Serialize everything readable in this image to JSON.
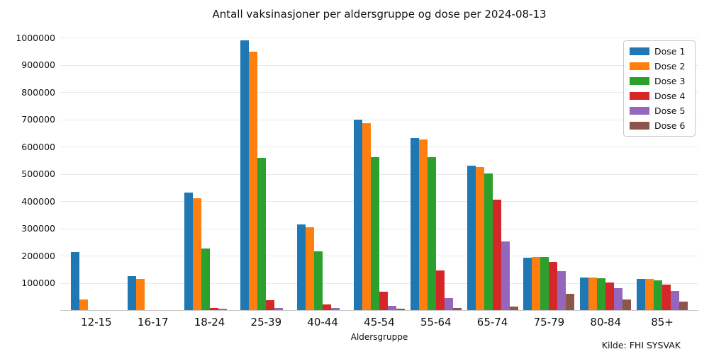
{
  "source": "Kilde: FHI SYSVAK",
  "colors": {
    "grid": "#e9e9e9",
    "axis_line": "#c8c8c8",
    "text": "#111111",
    "background": "#ffffff"
  },
  "chart_data": {
    "type": "bar",
    "title": "Antall vaksinasjoner per aldersgruppe og dose per 2024-08-13",
    "xlabel": "Aldersgruppe",
    "ylabel": "",
    "grid": "horizontal",
    "legend_position": "upper right",
    "ylim": [
      0,
      1040000
    ],
    "yticks": [
      100000,
      200000,
      300000,
      400000,
      500000,
      600000,
      700000,
      800000,
      900000,
      1000000
    ],
    "categories": [
      "12-15",
      "16-17",
      "18-24",
      "25-39",
      "40-44",
      "45-54",
      "55-64",
      "65-74",
      "75-79",
      "80-84",
      "85+"
    ],
    "series": [
      {
        "name": "Dose 1",
        "color": "#1f77b4",
        "values": [
          214000,
          126000,
          432000,
          991000,
          315000,
          700000,
          631000,
          530000,
          193000,
          119000,
          114000
        ]
      },
      {
        "name": "Dose 2",
        "color": "#ff7f0e",
        "values": [
          38000,
          115000,
          410000,
          948000,
          305000,
          686000,
          626000,
          526000,
          196000,
          120000,
          115000
        ]
      },
      {
        "name": "Dose 3",
        "color": "#2ca02c",
        "values": [
          0,
          0,
          227000,
          558000,
          215000,
          562000,
          563000,
          503000,
          196000,
          117000,
          110000
        ]
      },
      {
        "name": "Dose 4",
        "color": "#d62728",
        "values": [
          0,
          0,
          9000,
          37000,
          20000,
          68000,
          146000,
          405000,
          178000,
          102000,
          93000
        ]
      },
      {
        "name": "Dose 5",
        "color": "#9467bd",
        "values": [
          0,
          0,
          5000,
          8000,
          8000,
          16000,
          45000,
          253000,
          144000,
          80000,
          70000
        ]
      },
      {
        "name": "Dose 6",
        "color": "#8c564b",
        "values": [
          0,
          0,
          0,
          0,
          0,
          5000,
          8000,
          12000,
          60000,
          40000,
          31000
        ]
      }
    ]
  }
}
